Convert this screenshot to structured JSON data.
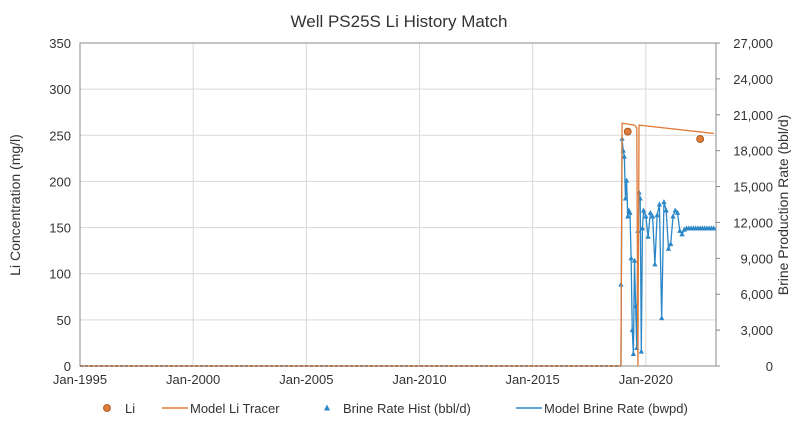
{
  "chart_data": {
    "type": "line",
    "title": "Well PS25S Li History Match",
    "xlabel": "",
    "ylabel": "Li Concentration (mg/l)",
    "y2label": "Brine Production Rate (bbl/d)",
    "xlim": [
      1995.0,
      2023.1
    ],
    "ylim": [
      0,
      350
    ],
    "y2lim": [
      0,
      27000
    ],
    "x_ticks": [
      {
        "value": 1995,
        "label": "Jan-1995"
      },
      {
        "value": 2000,
        "label": "Jan-2000"
      },
      {
        "value": 2005,
        "label": "Jan-2005"
      },
      {
        "value": 2010,
        "label": "Jan-2010"
      },
      {
        "value": 2015,
        "label": "Jan-2015"
      },
      {
        "value": 2020,
        "label": "Jan-2020"
      }
    ],
    "y_ticks": [
      "0",
      "50",
      "100",
      "150",
      "200",
      "250",
      "300",
      "350"
    ],
    "y2_ticks": [
      "0",
      "3,000",
      "6,000",
      "9,000",
      "12,000",
      "15,000",
      "18,000",
      "21,000",
      "24,000",
      "27,000"
    ],
    "grid": true,
    "legend_position": "bottom",
    "series": [
      {
        "name": "Li",
        "axis": "left",
        "style": "marker",
        "color": "#e07b39",
        "x": [
          2019.2,
          2022.4
        ],
        "y": [
          254,
          246
        ]
      },
      {
        "name": "Model Li Tracer",
        "axis": "left",
        "style": "line",
        "color": "#e07b39",
        "x": [
          2018.9,
          2018.95,
          2019.5,
          2019.6,
          2019.65,
          2019.7,
          2023.0
        ],
        "y": [
          0,
          263,
          261,
          258,
          0,
          261,
          252
        ]
      },
      {
        "name": "Brine Rate Hist (bbl/d)",
        "axis": "right",
        "style": "marker",
        "color": "#2b87c7",
        "x": [
          2018.9,
          2018.95,
          2019.0,
          2019.05,
          2019.1,
          2019.15,
          2019.2,
          2019.25,
          2019.3,
          2019.35,
          2019.4,
          2019.45,
          2019.5,
          2019.55,
          2019.6,
          2019.65,
          2019.7,
          2019.75,
          2019.8,
          2019.85,
          2019.9,
          2020.0,
          2020.1,
          2020.2,
          2020.3,
          2020.4,
          2020.5,
          2020.6,
          2020.7,
          2020.8,
          2020.9,
          2021.0,
          2021.1,
          2021.2,
          2021.3,
          2021.4,
          2021.5,
          2021.6,
          2021.7,
          2021.8,
          2021.9,
          2022.0,
          2022.1,
          2022.2,
          2022.3,
          2022.4,
          2022.5,
          2022.6,
          2022.7,
          2022.8,
          2022.9,
          2023.0
        ],
        "y": [
          6800,
          19000,
          18000,
          17500,
          14000,
          15500,
          12500,
          13000,
          12800,
          9000,
          3000,
          1000,
          8800,
          5000,
          1500,
          11300,
          14500,
          14000,
          1200,
          11500,
          13000,
          12500,
          10800,
          12800,
          12500,
          8500,
          12600,
          13500,
          4000,
          13700,
          13000,
          9800,
          10200,
          12500,
          13000,
          12800,
          11300,
          11000,
          11400,
          11500,
          11500,
          11500,
          11500,
          11500,
          11500,
          11500,
          11500,
          11500,
          11500,
          11500,
          11500,
          11500
        ]
      },
      {
        "name": "Model Brine Rate (bwpd)",
        "axis": "right",
        "style": "line",
        "color": "#2b87c7",
        "x": [
          2018.9,
          2018.95,
          2019.0,
          2019.05,
          2019.1,
          2019.15,
          2019.2,
          2019.25,
          2019.3,
          2019.35,
          2019.4,
          2019.45,
          2019.5,
          2019.55,
          2019.6,
          2019.65,
          2019.7,
          2019.75,
          2019.8,
          2019.85,
          2019.9,
          2020.0,
          2020.1,
          2020.2,
          2020.3,
          2020.4,
          2020.5,
          2020.6,
          2020.7,
          2020.8,
          2020.9,
          2021.0,
          2021.1,
          2021.2,
          2021.3,
          2021.4,
          2021.5,
          2021.6,
          2021.7,
          2021.8,
          2021.9,
          2022.0,
          2022.5,
          2023.0
        ],
        "y": [
          0,
          19000,
          18000,
          17500,
          14000,
          15500,
          12500,
          13000,
          12800,
          9000,
          3000,
          1000,
          8800,
          5000,
          1500,
          11300,
          14500,
          14000,
          1200,
          11500,
          13000,
          12500,
          10800,
          12800,
          12500,
          8500,
          12600,
          13500,
          4000,
          13700,
          13000,
          9800,
          10200,
          12500,
          13000,
          12800,
          11300,
          11000,
          11400,
          11500,
          11500,
          11500,
          11500,
          11500
        ]
      }
    ]
  }
}
